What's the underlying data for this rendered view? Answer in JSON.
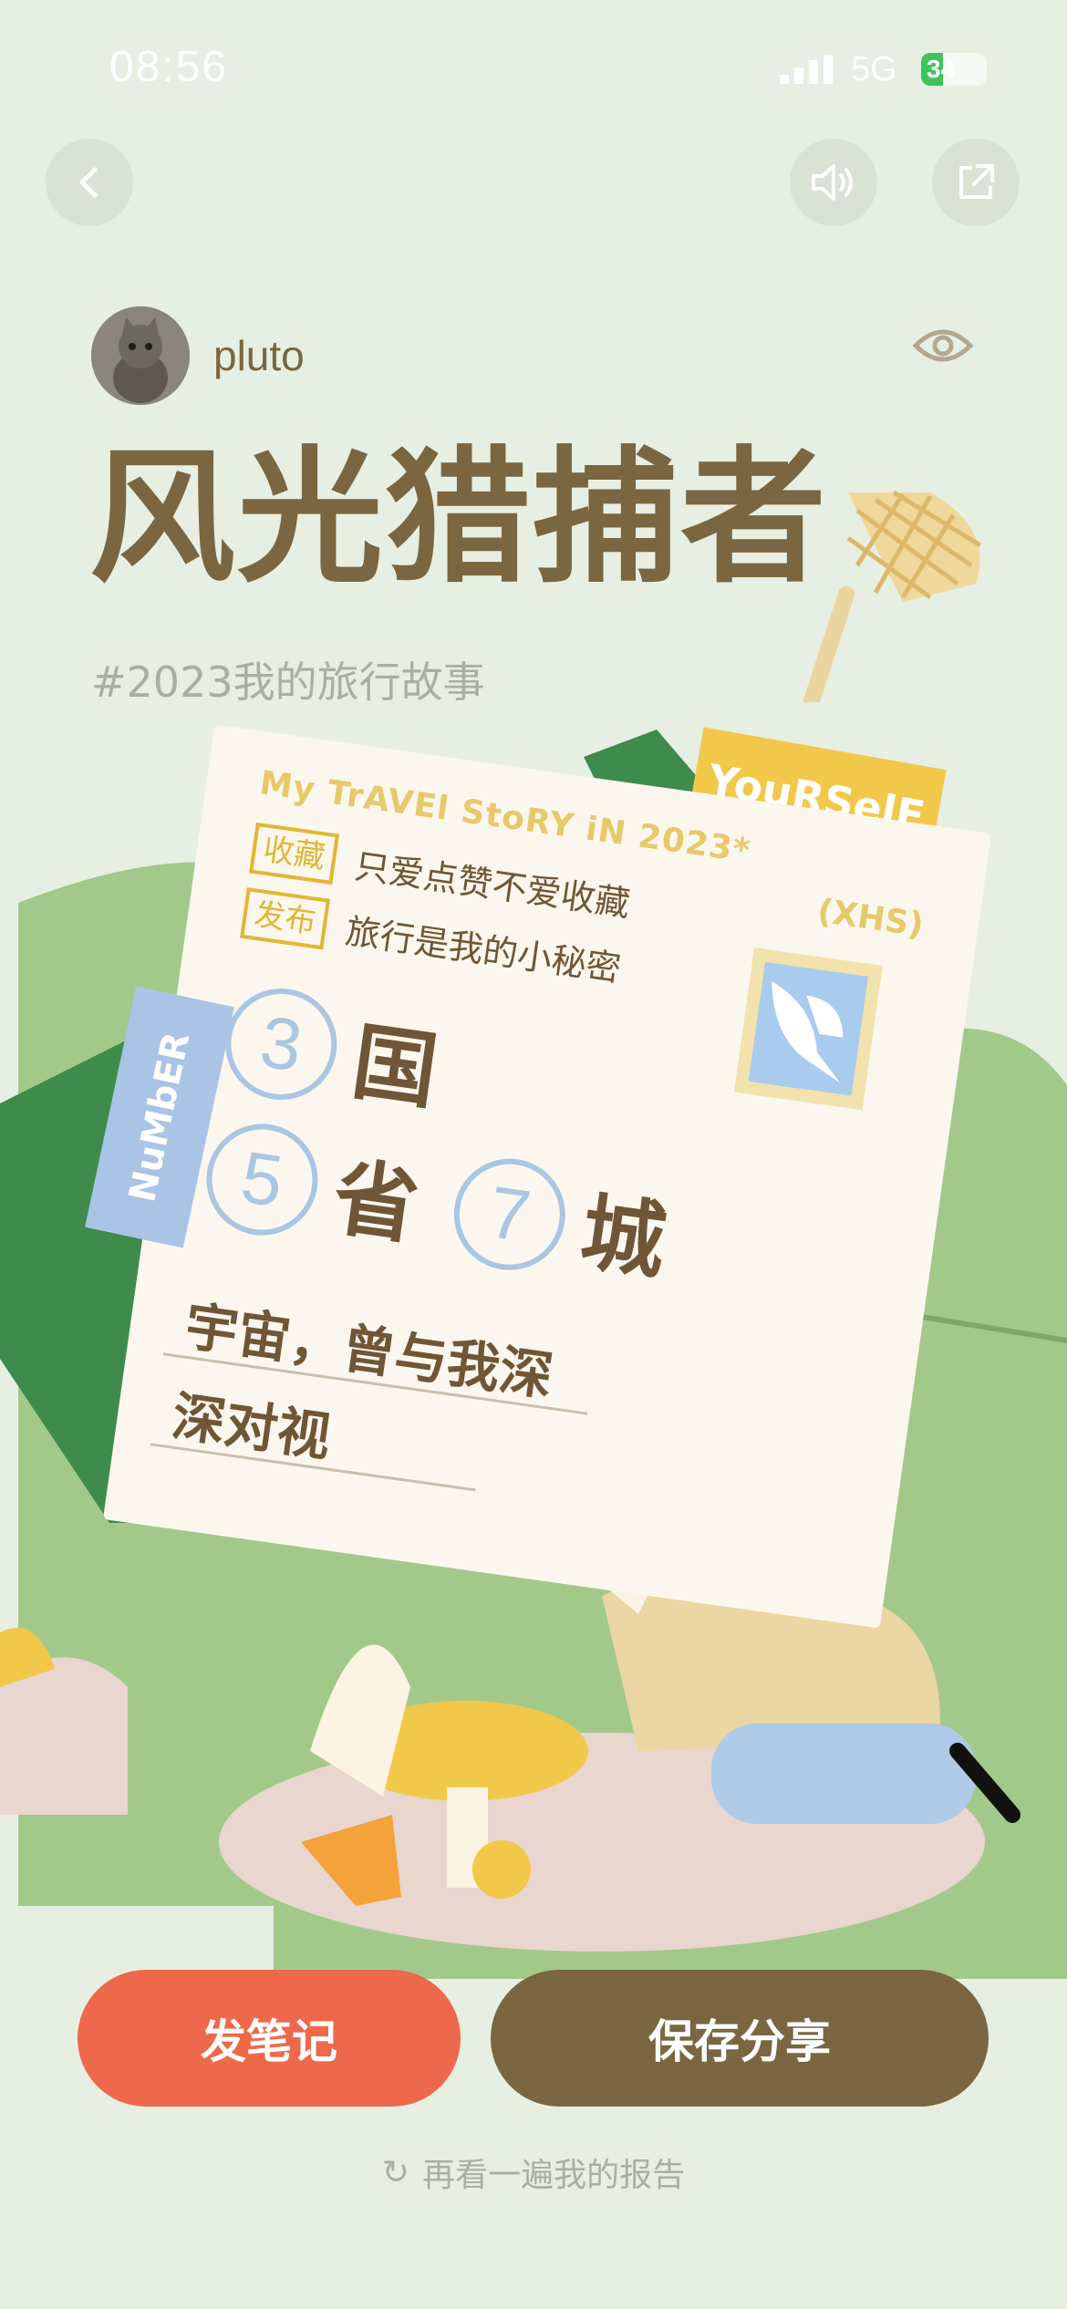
{
  "status_bar": {
    "time": "08:56",
    "network": "5G",
    "battery": "34",
    "battery_level": 0.34
  },
  "user": {
    "name": "pluto"
  },
  "report": {
    "title": "风光猎捕者",
    "hashtag": "#2023我的旅行故事"
  },
  "card": {
    "header": "My TrAVEl StoRY iN 2023*",
    "source": "(XHS)",
    "rows": [
      {
        "tag": "收藏",
        "text": "只爱点赞不爱收藏"
      },
      {
        "tag": "发布",
        "text": "旅行是我的小秘密"
      }
    ],
    "stats": [
      {
        "number": "3",
        "unit": "国"
      },
      {
        "number": "5",
        "unit": "省"
      },
      {
        "number": "7",
        "unit": "城"
      }
    ],
    "quote_line1": "宇宙，曾与我深",
    "quote_line2": "深对视",
    "yourself_tag": "YouRSelF",
    "number_tag": "NuMbER"
  },
  "buttons": {
    "post_note": "发笔记",
    "save_share": "保存分享"
  },
  "replay": {
    "label": "再看一遍我的报告"
  },
  "colors": {
    "background": "#e6efe2",
    "brown": "#7a6640",
    "orange": "#ee694c",
    "yellow": "#f2c84b",
    "blue": "#a9c4e4",
    "green": "#a3c98a"
  },
  "icons": [
    "back-icon",
    "sound-icon",
    "share-icon",
    "eye-icon",
    "replay-icon",
    "net-icon",
    "stamp-bird-icon"
  ]
}
